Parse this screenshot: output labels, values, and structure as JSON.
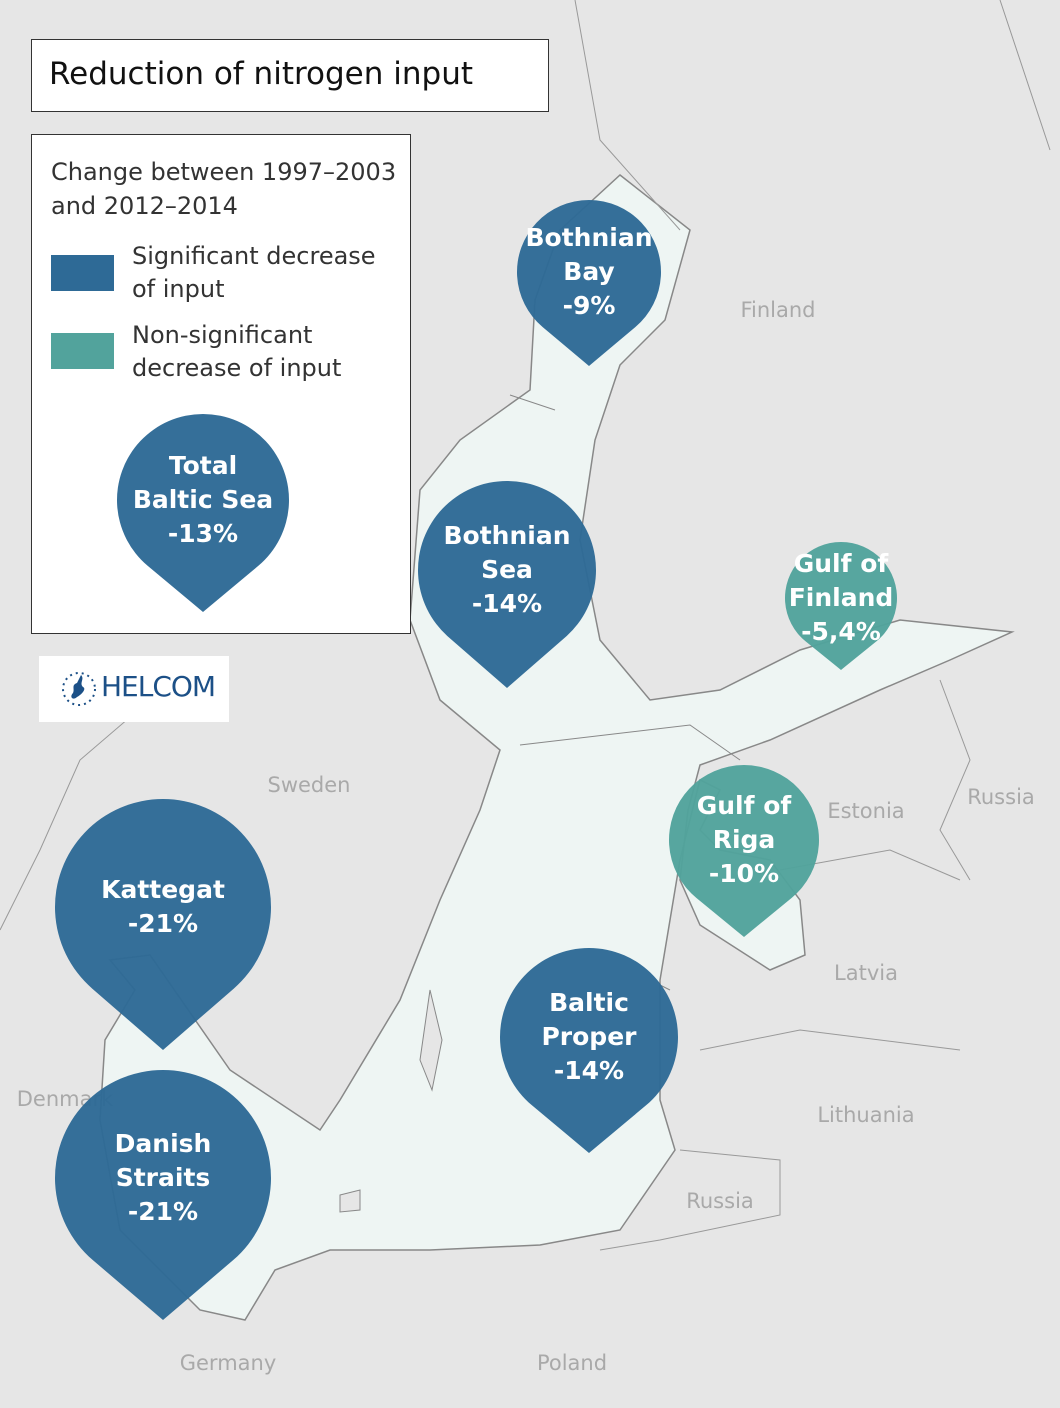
{
  "title": "Reduction of nitrogen input",
  "legend": {
    "period": "Change between 1997–2003 and 2012–2014",
    "items": [
      {
        "label": "Significant decrease of input",
        "color": "#2e6a96"
      },
      {
        "label": "Non-significant decrease of input",
        "color": "#52a39c"
      }
    ]
  },
  "logo": {
    "text": "HELCOM"
  },
  "countries": [
    "Finland",
    "Sweden",
    "Estonia",
    "Russia",
    "Latvia",
    "Lithuania",
    "Russia",
    "Denmark",
    "Germany",
    "Poland"
  ],
  "regions": [
    {
      "id": "total",
      "lines": [
        "Total",
        "Baltic Sea",
        "-13%"
      ],
      "value": -13,
      "significant": true
    },
    {
      "id": "bothnian-bay",
      "lines": [
        "Bothnian",
        "Bay",
        "-9%"
      ],
      "value": -9,
      "significant": true
    },
    {
      "id": "bothnian-sea",
      "lines": [
        "Bothnian",
        "Sea",
        "-14%"
      ],
      "value": -14,
      "significant": true
    },
    {
      "id": "gulf-of-finland",
      "lines": [
        "Gulf of",
        "Finland",
        "-5,4%"
      ],
      "value": -5.4,
      "significant": false
    },
    {
      "id": "gulf-of-riga",
      "lines": [
        "Gulf of",
        "Riga",
        "-10%"
      ],
      "value": -10,
      "significant": false
    },
    {
      "id": "kattegat",
      "lines": [
        "Kattegat",
        "-21%"
      ],
      "value": -21,
      "significant": true
    },
    {
      "id": "baltic-proper",
      "lines": [
        "Baltic",
        "Proper",
        "-14%"
      ],
      "value": -14,
      "significant": true
    },
    {
      "id": "danish-straits",
      "lines": [
        "Danish",
        "Straits",
        "-21%"
      ],
      "value": -21,
      "significant": true
    }
  ]
}
